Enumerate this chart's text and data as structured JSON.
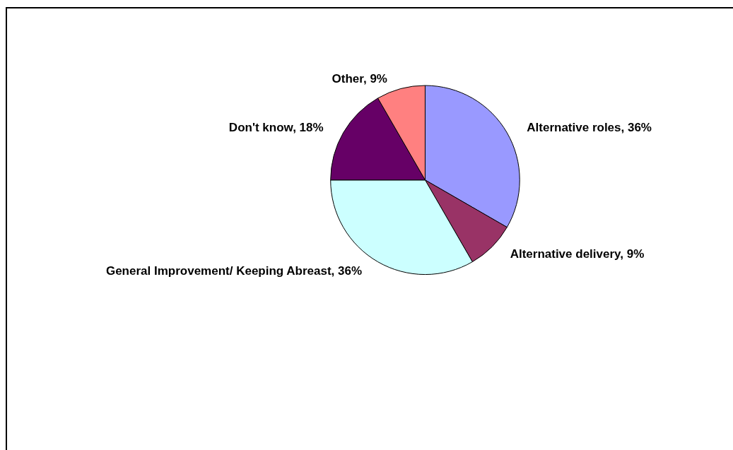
{
  "chart_data": {
    "type": "pie",
    "categories": [
      "Alternative roles",
      "Alternative delivery",
      "General Improvement/ Keeping Abreast",
      "Don't know",
      "Other"
    ],
    "values": [
      36,
      9,
      36,
      18,
      9
    ],
    "colors": [
      "#9999ff",
      "#993366",
      "#ccffff",
      "#660066",
      "#ff8080"
    ],
    "value_labels": [
      "36%",
      "9%",
      "36%",
      "18%",
      "9%"
    ],
    "legend": false
  }
}
